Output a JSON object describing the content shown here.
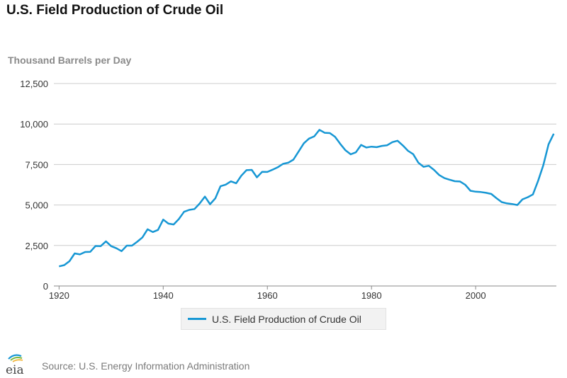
{
  "title": "U.S. Field Production of Crude Oil",
  "source": "Source: U.S. Energy Information Administration",
  "logo": {
    "text": "eia",
    "colors": [
      "#1797d4",
      "#7ab941",
      "#f2b53a"
    ]
  },
  "legend": {
    "label": "U.S. Field Production of Crude Oil"
  },
  "colors": {
    "series": "#1797d4",
    "grid": "#cccccc",
    "axis": "#888888"
  },
  "chart_data": {
    "type": "line",
    "title": "U.S. Field Production of Crude Oil",
    "ylabel": "Thousand Barrels per Day",
    "xlabel": "",
    "xlim": [
      1919,
      2015.5
    ],
    "ylim": [
      0,
      12500
    ],
    "x_ticks": [
      1920,
      1940,
      1960,
      1980,
      2000
    ],
    "x_tick_labels": [
      "1920",
      "1940",
      "1960",
      "1980",
      "2000"
    ],
    "y_ticks": [
      0,
      2500,
      5000,
      7500,
      10000,
      12500
    ],
    "y_tick_labels": [
      "0",
      "2,500",
      "5,000",
      "7,500",
      "10,000",
      "12,500"
    ],
    "grid": true,
    "legend_position": "bottom-center",
    "series": [
      {
        "name": "U.S. Field Production of Crude Oil",
        "x": [
          1920,
          1921,
          1922,
          1923,
          1924,
          1925,
          1926,
          1927,
          1928,
          1929,
          1930,
          1931,
          1932,
          1933,
          1934,
          1935,
          1936,
          1937,
          1938,
          1939,
          1940,
          1941,
          1942,
          1943,
          1944,
          1945,
          1946,
          1947,
          1948,
          1949,
          1950,
          1951,
          1952,
          1953,
          1954,
          1955,
          1956,
          1957,
          1958,
          1959,
          1960,
          1961,
          1962,
          1963,
          1964,
          1965,
          1966,
          1967,
          1968,
          1969,
          1970,
          1971,
          1972,
          1973,
          1974,
          1975,
          1976,
          1977,
          1978,
          1979,
          1980,
          1981,
          1982,
          1983,
          1984,
          1985,
          1986,
          1987,
          1988,
          1989,
          1990,
          1991,
          1992,
          1993,
          1994,
          1995,
          1996,
          1997,
          1998,
          1999,
          2000,
          2001,
          2002,
          2003,
          2004,
          2005,
          2006,
          2007,
          2008,
          2009,
          2010,
          2011,
          2012,
          2013,
          2014,
          2015
        ],
        "values": [
          1210,
          1290,
          1530,
          2010,
          1950,
          2100,
          2110,
          2470,
          2460,
          2760,
          2460,
          2330,
          2150,
          2490,
          2490,
          2730,
          3000,
          3500,
          3330,
          3460,
          4100,
          3850,
          3800,
          4130,
          4580,
          4700,
          4750,
          5090,
          5520,
          5050,
          5410,
          6160,
          6260,
          6460,
          6340,
          6810,
          7150,
          7170,
          6710,
          7050,
          7040,
          7180,
          7330,
          7540,
          7610,
          7800,
          8300,
          8810,
          9100,
          9240,
          9640,
          9460,
          9440,
          9210,
          8770,
          8380,
          8130,
          8250,
          8710,
          8550,
          8600,
          8570,
          8650,
          8690,
          8880,
          8970,
          8680,
          8350,
          8140,
          7610,
          7360,
          7420,
          7170,
          6850,
          6660,
          6560,
          6470,
          6450,
          6250,
          5880,
          5820,
          5800,
          5750,
          5680,
          5420,
          5180,
          5100,
          5060,
          5000,
          5350,
          5480,
          5650,
          6500,
          7460,
          8750,
          9400
        ]
      }
    ]
  }
}
